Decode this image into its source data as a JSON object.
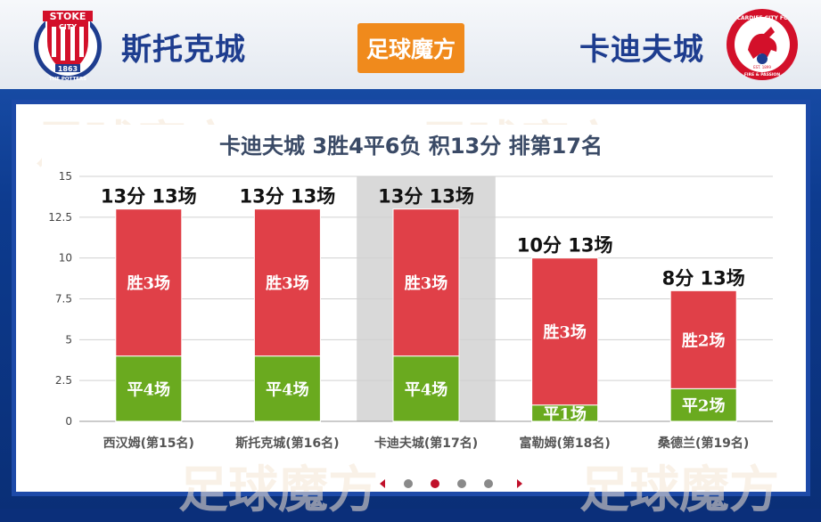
{
  "header": {
    "home_team": "斯托克城",
    "away_team": "卡迪夫城",
    "logo_text": "足球魔方",
    "home_crest": {
      "name": "stoke-city-crest",
      "lines": [
        "STOKE",
        "CITY",
        "1863",
        "THE POTTERS"
      ]
    },
    "away_crest": {
      "name": "cardiff-city-crest",
      "lines": [
        "CARDIFF CITY FC",
        "EST. 1899",
        "FIRE & PASSION"
      ]
    }
  },
  "colors": {
    "win": "#e04048",
    "draw": "#6aaa1f",
    "highlight": "#d9d9d9",
    "title": "#3a4a66",
    "orange": "#f08a1c"
  },
  "chart_data": {
    "type": "bar",
    "title": "卡迪夫城 3胜4平6负 积13分 排第17名",
    "categories": [
      "西汉姆(第15名)",
      "斯托克城(第16名)",
      "卡迪夫城(第17名)",
      "富勒姆(第18名)",
      "桑德兰(第19名)"
    ],
    "series": [
      {
        "key": "draw",
        "values": [
          4,
          4,
          4,
          1,
          2
        ],
        "labels": [
          "平4场",
          "平4场",
          "平4场",
          "平1场",
          "平2场"
        ]
      },
      {
        "key": "win",
        "values": [
          9,
          9,
          9,
          9,
          6
        ],
        "labels": [
          "胜3场",
          "胜3场",
          "胜3场",
          "胜3场",
          "胜2场"
        ]
      }
    ],
    "totals": [
      13,
      13,
      13,
      10,
      8
    ],
    "total_labels": [
      "13分 13场",
      "13分 13场",
      "13分 13场",
      "10分 13场",
      "8分 13场"
    ],
    "highlight_index": 2,
    "ylim": [
      0,
      15
    ],
    "yticks": [
      0,
      2.5,
      5,
      7.5,
      10,
      12.5,
      15
    ],
    "ytick_labels": [
      "0",
      "2.5",
      "5",
      "7.5",
      "10",
      "12.5",
      "15"
    ],
    "xlabel": "",
    "ylabel": "",
    "grid": true
  },
  "pager": {
    "pages": 4,
    "active": 1
  }
}
